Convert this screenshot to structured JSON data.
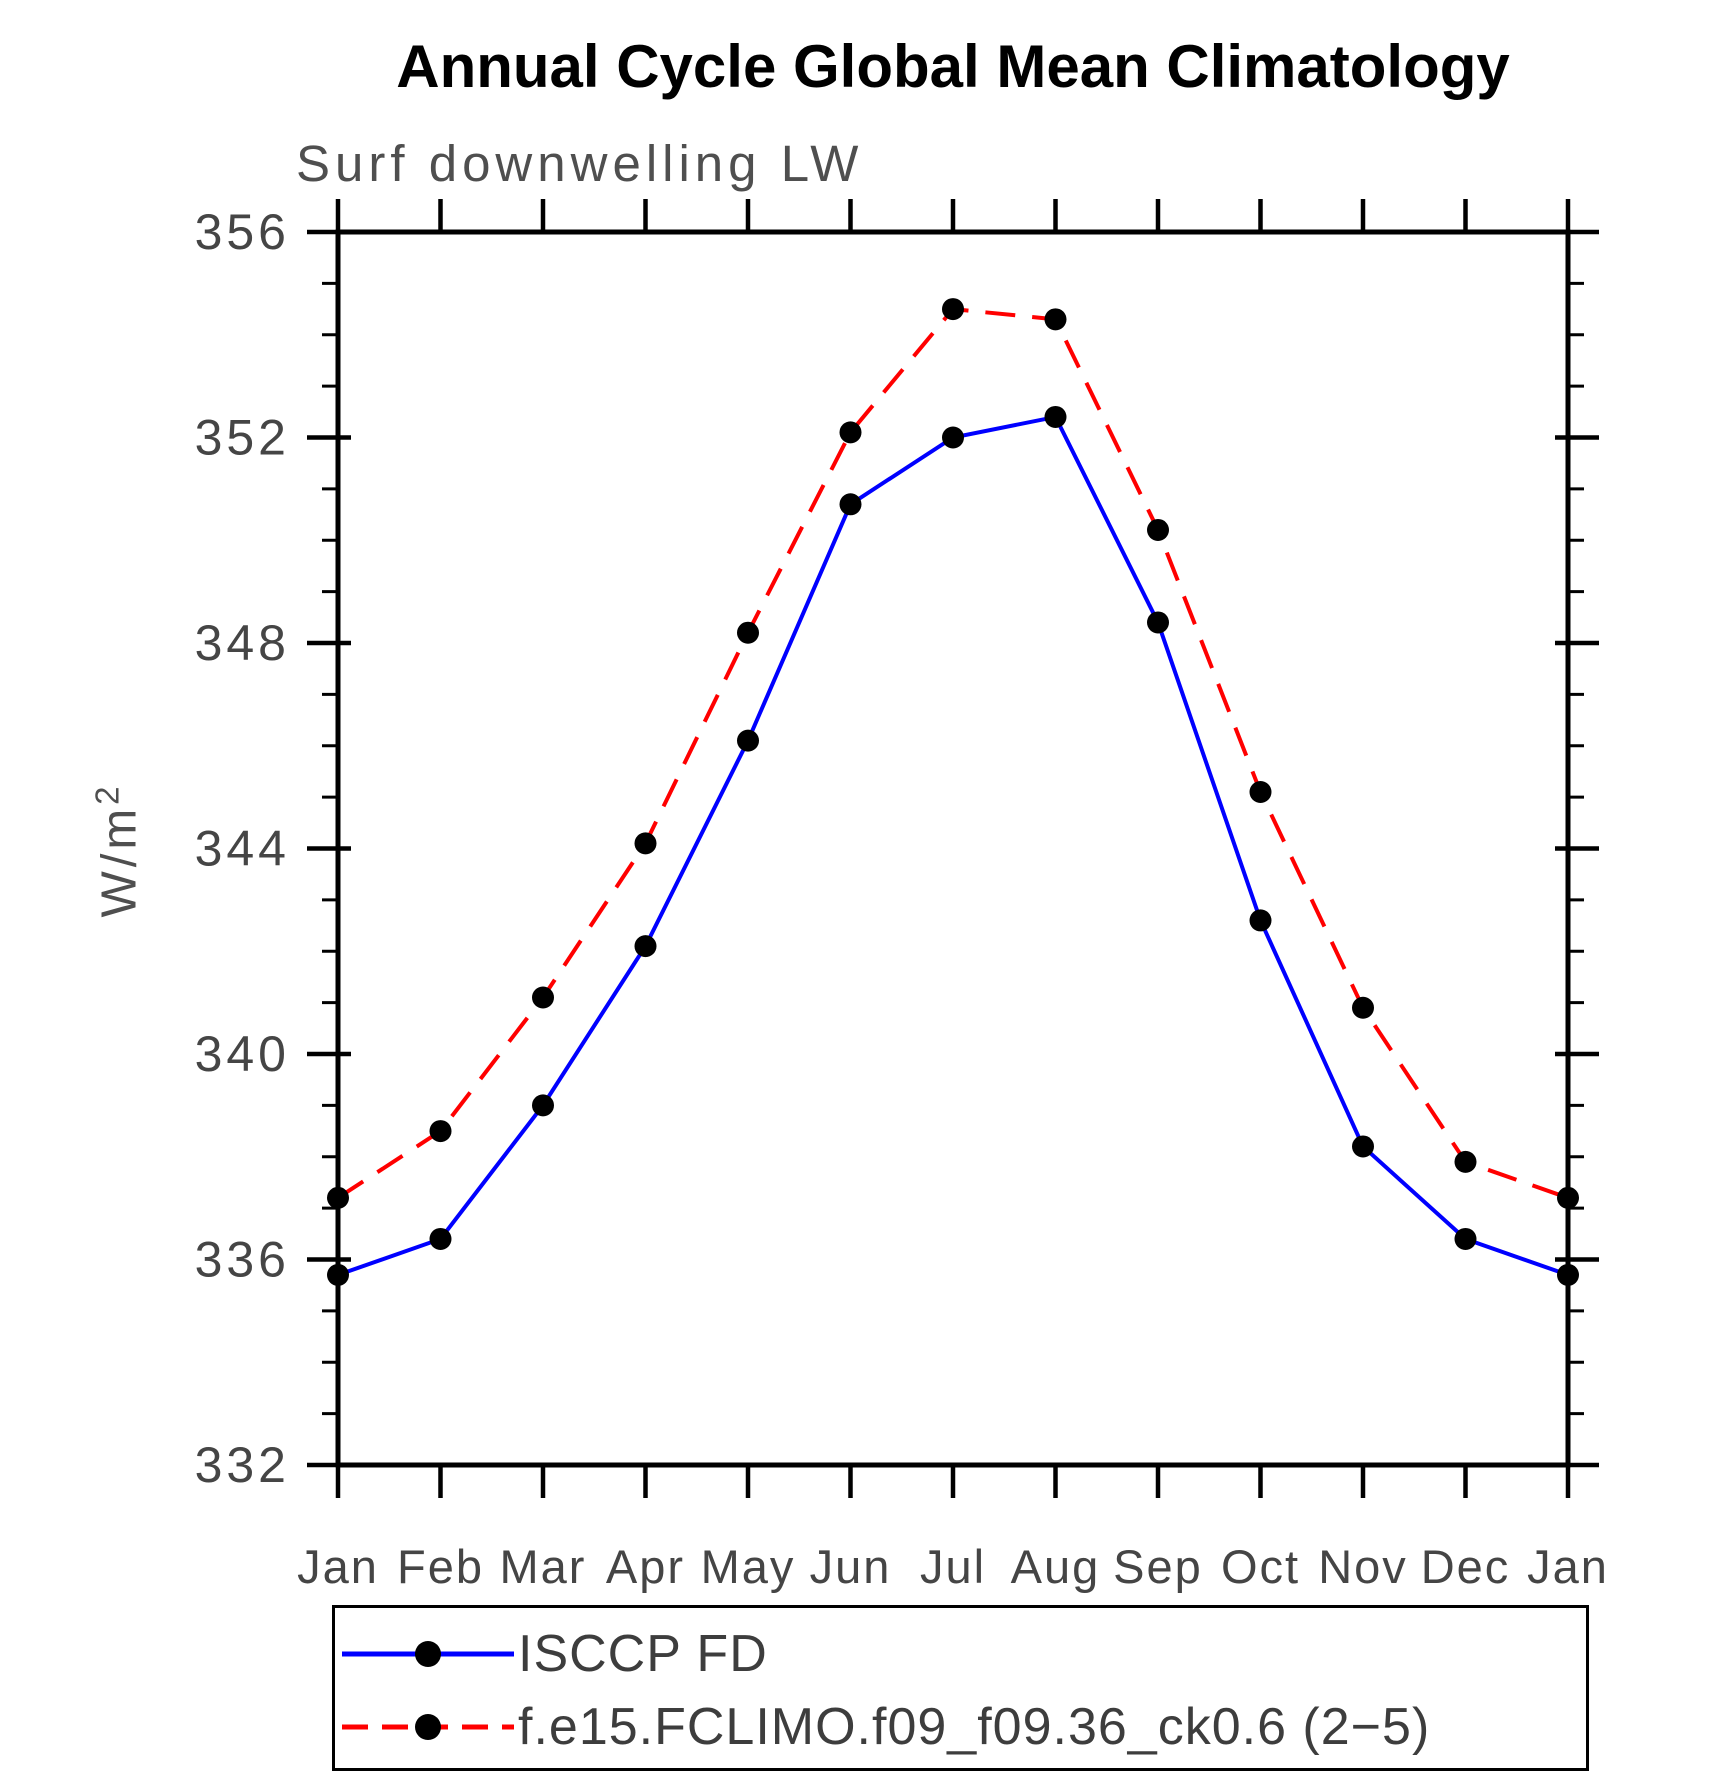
{
  "header": {
    "title": "Annual Cycle Global Mean Climatology",
    "subtitle": "Surf downwelling LW"
  },
  "y_axis": {
    "unit_base": "W/m",
    "unit_sup": "2"
  },
  "chart_data": {
    "type": "line",
    "title": "Annual Cycle Global Mean Climatology",
    "subtitle": "Surf downwelling LW",
    "ylabel": "W/m²",
    "xlabel": "",
    "categories": [
      "Jan",
      "Feb",
      "Mar",
      "Apr",
      "May",
      "Jun",
      "Jul",
      "Aug",
      "Sep",
      "Oct",
      "Nov",
      "Dec",
      "Jan"
    ],
    "ylim": [
      332,
      356
    ],
    "y_major_ticks": [
      332,
      336,
      340,
      344,
      348,
      352,
      356
    ],
    "y_minor_tick_step": 1,
    "grid": false,
    "legend_position": "bottom-left",
    "axis_color": "#000000",
    "marker_color": "#000000",
    "series": [
      {
        "name": "ISCCP FD",
        "color": "#0000ff",
        "line_style": "solid",
        "marker": "filled-circle",
        "values": [
          335.7,
          336.4,
          339.0,
          342.1,
          346.1,
          350.7,
          352.0,
          352.4,
          348.4,
          342.6,
          338.2,
          336.4,
          335.7
        ]
      },
      {
        "name": "f.e15.FCLIMO.f09_f09.36_ck0.6 (2−5)",
        "color": "#ff0000",
        "line_style": "dashed",
        "marker": "filled-circle",
        "values": [
          337.2,
          338.5,
          341.1,
          344.1,
          348.2,
          352.1,
          354.5,
          354.3,
          350.2,
          345.1,
          340.9,
          337.9,
          337.2
        ]
      }
    ]
  },
  "legend": {
    "entries": [
      {
        "label": "ISCCP FD"
      },
      {
        "label": "f.e15.FCLIMO.f09_f09.36_ck0.6 (2−5)"
      }
    ]
  }
}
